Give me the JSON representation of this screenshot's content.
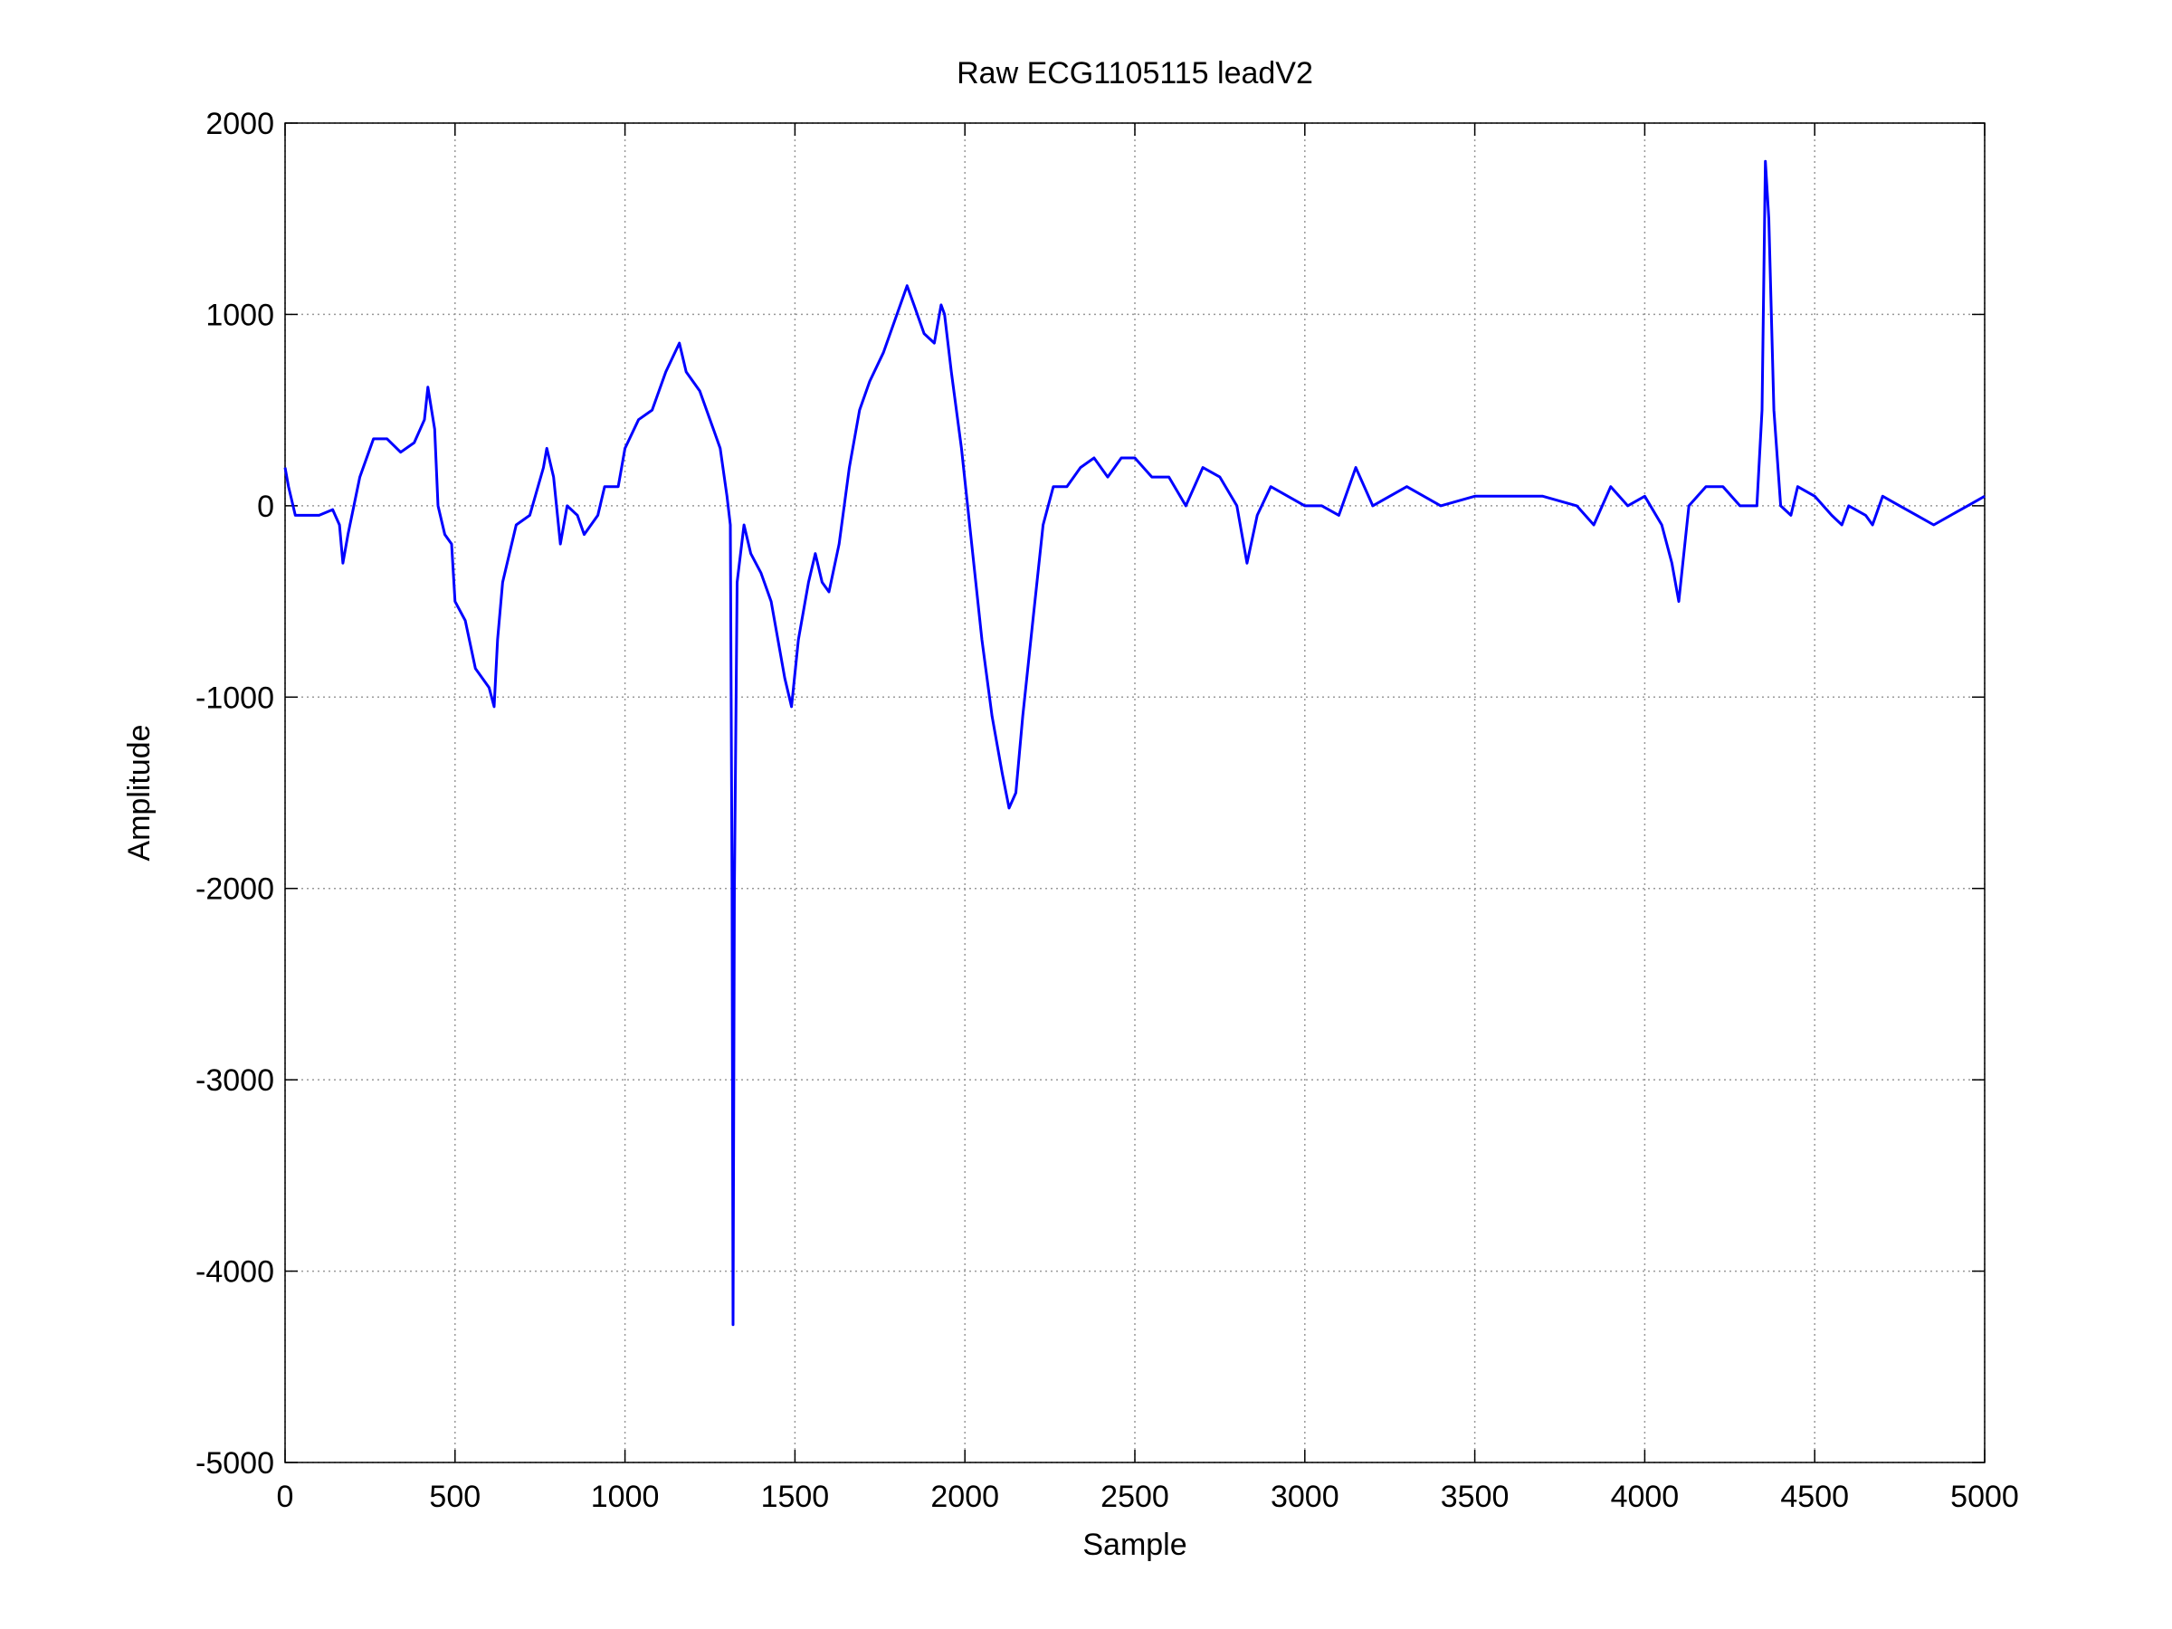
{
  "chart_data": {
    "type": "line",
    "title": "Raw ECG1105115 leadV2",
    "xlabel": "Sample",
    "ylabel": "Amplitude",
    "color": "#0000ff",
    "grid": true,
    "xlim": [
      0,
      5000
    ],
    "ylim": [
      -5000,
      2000
    ],
    "xticks": [
      0,
      500,
      1000,
      1500,
      2000,
      2500,
      3000,
      3500,
      4000,
      4500,
      5000
    ],
    "yticks": [
      -5000,
      -4000,
      -3000,
      -2000,
      -1000,
      0,
      1000,
      2000
    ],
    "x": [
      0,
      10,
      30,
      60,
      100,
      140,
      160,
      170,
      185,
      220,
      260,
      300,
      340,
      380,
      410,
      420,
      440,
      450,
      470,
      490,
      500,
      530,
      560,
      600,
      615,
      625,
      640,
      680,
      720,
      760,
      770,
      790,
      810,
      830,
      860,
      880,
      920,
      940,
      980,
      1000,
      1040,
      1080,
      1120,
      1160,
      1180,
      1220,
      1260,
      1280,
      1300,
      1310,
      1315,
      1318,
      1322,
      1330,
      1350,
      1370,
      1400,
      1430,
      1450,
      1470,
      1490,
      1510,
      1540,
      1560,
      1580,
      1600,
      1630,
      1660,
      1690,
      1720,
      1760,
      1800,
      1830,
      1850,
      1880,
      1910,
      1930,
      1940,
      1960,
      1990,
      2020,
      2050,
      2080,
      2110,
      2130,
      2150,
      2170,
      2200,
      2230,
      2260,
      2300,
      2340,
      2380,
      2420,
      2460,
      2500,
      2550,
      2600,
      2650,
      2700,
      2750,
      2800,
      2830,
      2860,
      2900,
      2950,
      3000,
      3050,
      3100,
      3150,
      3200,
      3300,
      3400,
      3500,
      3600,
      3700,
      3800,
      3850,
      3900,
      3950,
      4000,
      4050,
      4080,
      4100,
      4130,
      4180,
      4230,
      4280,
      4330,
      4345,
      4355,
      4365,
      4380,
      4400,
      4430,
      4450,
      4500,
      4550,
      4580,
      4600,
      4650,
      4670,
      4700,
      4750,
      4800,
      4850,
      4900,
      4950,
      5000
    ],
    "values": [
      200,
      100,
      -50,
      -50,
      -50,
      -20,
      -100,
      -300,
      -150,
      150,
      350,
      350,
      280,
      330,
      450,
      620,
      400,
      0,
      -150,
      -200,
      -500,
      -600,
      -850,
      -950,
      -1050,
      -700,
      -400,
      -100,
      -50,
      200,
      300,
      150,
      -200,
      0,
      -50,
      -150,
      -50,
      100,
      100,
      300,
      450,
      500,
      700,
      850,
      700,
      600,
      400,
      300,
      50,
      -100,
      -2000,
      -4280,
      -2000,
      -400,
      -100,
      -250,
      -350,
      -500,
      -700,
      -900,
      -1050,
      -700,
      -400,
      -250,
      -400,
      -450,
      -200,
      200,
      500,
      650,
      800,
      1000,
      1150,
      1050,
      900,
      850,
      1050,
      1000,
      700,
      300,
      -200,
      -700,
      -1100,
      -1400,
      -1580,
      -1500,
      -1100,
      -600,
      -100,
      100,
      100,
      200,
      250,
      150,
      250,
      250,
      150,
      150,
      0,
      200,
      150,
      0,
      -300,
      -50,
      100,
      50,
      0,
      0,
      -50,
      200,
      0,
      100,
      0,
      50,
      50,
      50,
      0,
      -100,
      100,
      0,
      50,
      -100,
      -300,
      -500,
      0,
      100,
      100,
      0,
      0,
      500,
      1800,
      1500,
      500,
      0,
      -50,
      100,
      50,
      -50,
      -100,
      0,
      -50,
      -100,
      50,
      0,
      -50,
      -100,
      -50,
      0,
      50
    ]
  }
}
